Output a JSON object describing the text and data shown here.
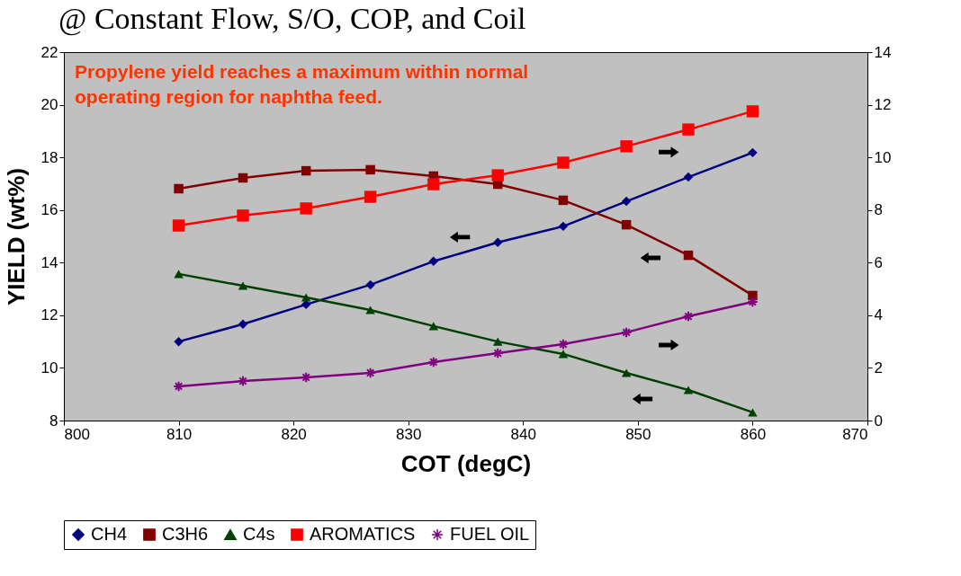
{
  "chart_data": {
    "type": "line",
    "title": "@ Constant Flow, S/O, COP, and Coil",
    "xlabel": "COT (degC)",
    "ylabel": "YIELD (wt%)",
    "annotations": [
      "Propylene yield reaches a maximum within normal\noperating region for naphtha feed."
    ],
    "x": [
      810,
      815.6,
      821.1,
      826.7,
      832.2,
      837.8,
      843.5,
      849,
      854.4,
      860
    ],
    "xlim": [
      800,
      870
    ],
    "xticks": [
      800,
      810,
      820,
      830,
      840,
      850,
      860,
      870
    ],
    "ylim": [
      8,
      22
    ],
    "yticks": [
      8,
      10,
      12,
      14,
      16,
      18,
      20,
      22
    ],
    "y2lim": [
      0,
      14
    ],
    "y2ticks": [
      0,
      2,
      4,
      6,
      8,
      10,
      12,
      14
    ],
    "grid": false,
    "legend": "bottom",
    "line_style": "solid",
    "series": [
      {
        "name": "CH4",
        "color": "#000080",
        "marker": "diamond",
        "values": [
          11.0,
          11.66,
          12.41,
          13.16,
          14.05,
          14.77,
          15.38,
          16.33,
          17.25,
          18.18
        ]
      },
      {
        "name": "C3H6",
        "color": "#800000",
        "marker": "square",
        "values": [
          16.81,
          17.22,
          17.49,
          17.53,
          17.29,
          16.98,
          16.37,
          15.44,
          14.28,
          12.75
        ]
      },
      {
        "name": "C4s",
        "color": "#004000",
        "marker": "triangle",
        "values": [
          13.57,
          13.12,
          12.68,
          12.2,
          11.59,
          11.0,
          10.53,
          9.81,
          9.16,
          8.31
        ]
      },
      {
        "name": "AROMATICS",
        "color": "#ff0000",
        "marker": "square",
        "axis": "y2",
        "values": [
          7.41,
          7.79,
          8.06,
          8.5,
          8.98,
          9.32,
          9.8,
          10.42,
          11.06,
          11.75
        ]
      },
      {
        "name": "FUEL OIL",
        "color": "#800080",
        "marker": "cross",
        "axis": "y2",
        "values": [
          1.3,
          1.5,
          1.64,
          1.81,
          2.22,
          2.56,
          2.9,
          3.35,
          3.96,
          4.51
        ]
      }
    ]
  }
}
